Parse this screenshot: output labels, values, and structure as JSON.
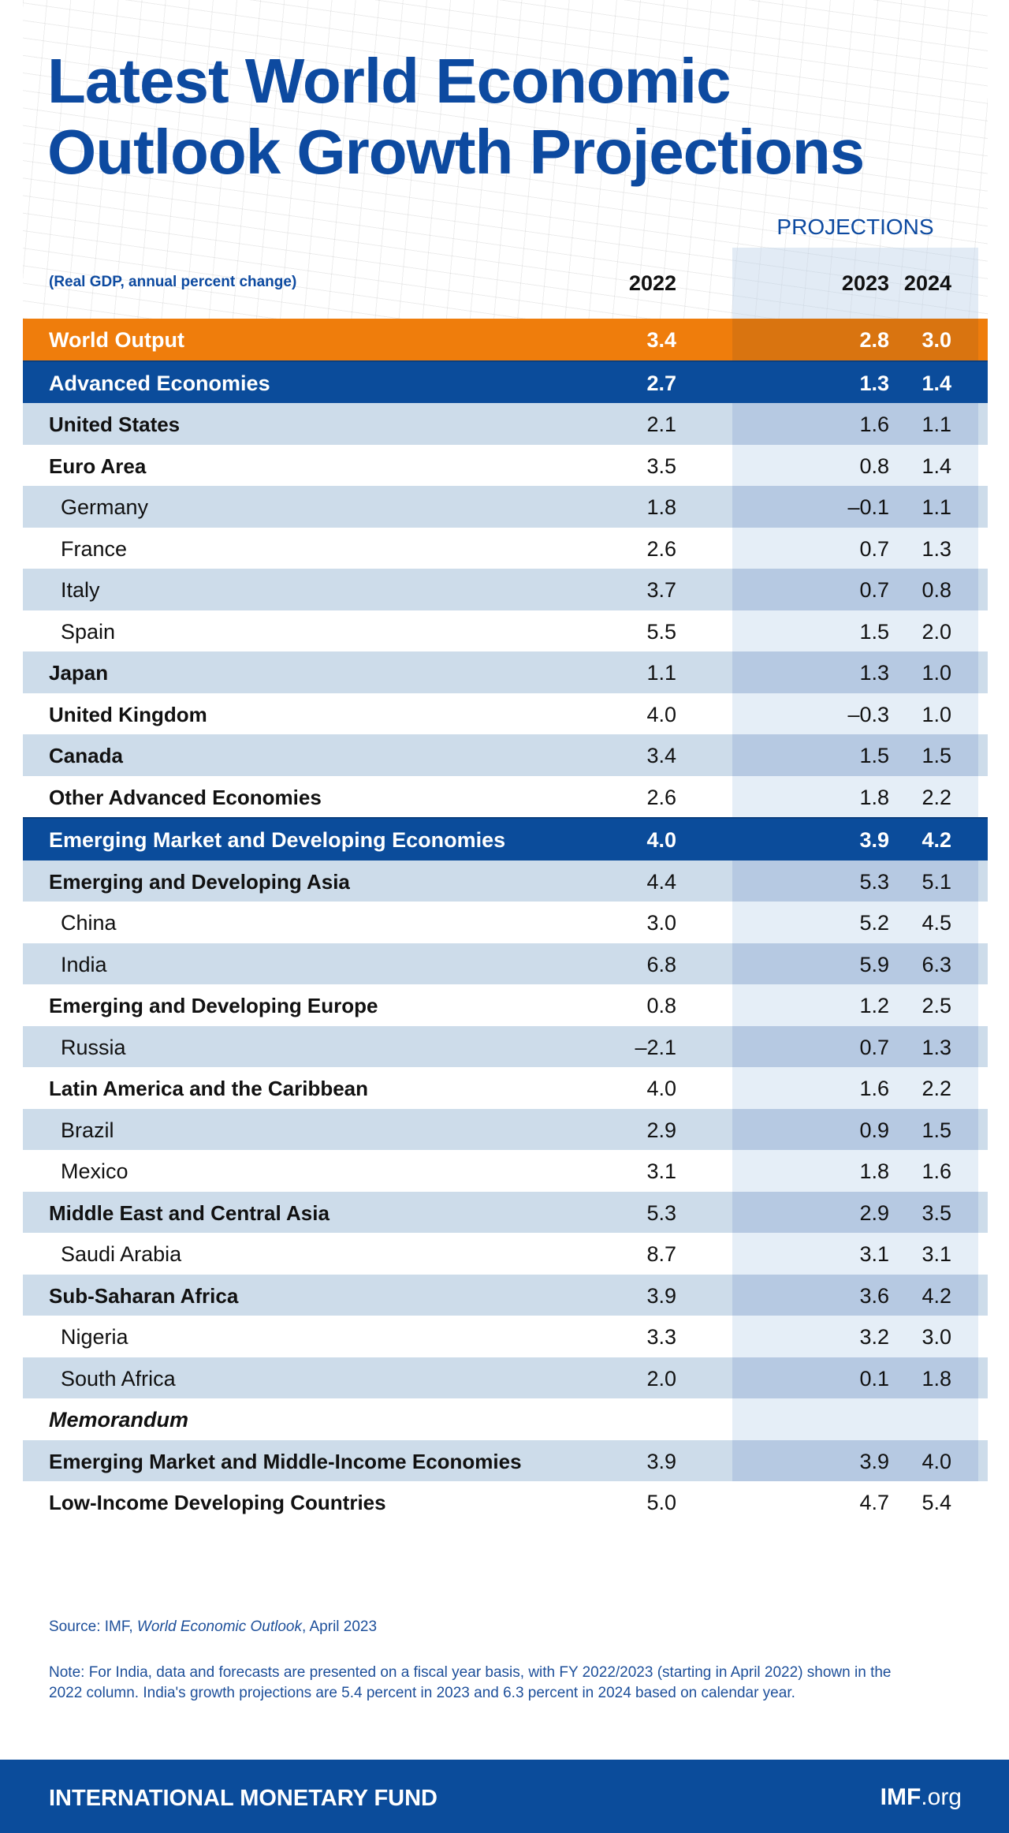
{
  "title_line1": "Latest World Economic",
  "title_line2": "Outlook Growth Projections",
  "projections_label": "PROJECTIONS",
  "subtitle": "(Real GDP, annual percent change)",
  "years": [
    "2022",
    "2023",
    "2024"
  ],
  "rows": [
    {
      "label": "World Output",
      "type": "world",
      "values": [
        "3.4",
        "2.8",
        "3.0"
      ]
    },
    {
      "label": "Advanced Economies",
      "type": "group",
      "values": [
        "2.7",
        "1.3",
        "1.4"
      ]
    },
    {
      "label": "United States",
      "type": "region",
      "values": [
        "2.1",
        "1.6",
        "1.1"
      ]
    },
    {
      "label": "Euro Area",
      "type": "region",
      "values": [
        "3.5",
        "0.8",
        "1.4"
      ]
    },
    {
      "label": "Germany",
      "type": "country",
      "values": [
        "1.8",
        "–0.1",
        "1.1"
      ]
    },
    {
      "label": "France",
      "type": "country",
      "values": [
        "2.6",
        "0.7",
        "1.3"
      ]
    },
    {
      "label": "Italy",
      "type": "country",
      "values": [
        "3.7",
        "0.7",
        "0.8"
      ]
    },
    {
      "label": "Spain",
      "type": "country",
      "values": [
        "5.5",
        "1.5",
        "2.0"
      ]
    },
    {
      "label": "Japan",
      "type": "region",
      "values": [
        "1.1",
        "1.3",
        "1.0"
      ]
    },
    {
      "label": "United Kingdom",
      "type": "region",
      "values": [
        "4.0",
        "–0.3",
        "1.0"
      ]
    },
    {
      "label": "Canada",
      "type": "region",
      "values": [
        "3.4",
        "1.5",
        "1.5"
      ]
    },
    {
      "label": "Other Advanced Economies",
      "type": "region",
      "values": [
        "2.6",
        "1.8",
        "2.2"
      ]
    },
    {
      "label": "Emerging Market and Developing Economies",
      "type": "group",
      "values": [
        "4.0",
        "3.9",
        "4.2"
      ]
    },
    {
      "label": "Emerging and Developing Asia",
      "type": "region",
      "values": [
        "4.4",
        "5.3",
        "5.1"
      ]
    },
    {
      "label": "China",
      "type": "country",
      "values": [
        "3.0",
        "5.2",
        "4.5"
      ]
    },
    {
      "label": "India",
      "type": "country",
      "values": [
        "6.8",
        "5.9",
        "6.3"
      ]
    },
    {
      "label": "Emerging and Developing Europe",
      "type": "region",
      "values": [
        "0.8",
        "1.2",
        "2.5"
      ]
    },
    {
      "label": "Russia",
      "type": "country",
      "values": [
        "–2.1",
        "0.7",
        "1.3"
      ]
    },
    {
      "label": "Latin America and the Caribbean",
      "type": "region",
      "values": [
        "4.0",
        "1.6",
        "2.2"
      ]
    },
    {
      "label": "Brazil",
      "type": "country",
      "values": [
        "2.9",
        "0.9",
        "1.5"
      ]
    },
    {
      "label": "Mexico",
      "type": "country",
      "values": [
        "3.1",
        "1.8",
        "1.6"
      ]
    },
    {
      "label": "Middle East and Central Asia",
      "type": "region",
      "values": [
        "5.3",
        "2.9",
        "3.5"
      ]
    },
    {
      "label": "Saudi Arabia",
      "type": "country",
      "values": [
        "8.7",
        "3.1",
        "3.1"
      ]
    },
    {
      "label": "Sub-Saharan Africa",
      "type": "region",
      "values": [
        "3.9",
        "3.6",
        "4.2"
      ]
    },
    {
      "label": "Nigeria",
      "type": "country",
      "values": [
        "3.3",
        "3.2",
        "3.0"
      ]
    },
    {
      "label": "South Africa",
      "type": "country",
      "values": [
        "2.0",
        "0.1",
        "1.8"
      ]
    },
    {
      "label": "Memorandum",
      "type": "memo",
      "values": [
        "",
        "",
        ""
      ]
    },
    {
      "label": "Emerging Market and Middle-Income Economies",
      "type": "region",
      "values": [
        "3.9",
        "3.9",
        "4.0"
      ]
    },
    {
      "label": "Low-Income Developing Countries",
      "type": "region",
      "values": [
        "5.0",
        "4.7",
        "5.4"
      ]
    }
  ],
  "source": {
    "prefix": "Source: IMF, ",
    "publication": "World Economic Outlook",
    "suffix": ", April 2023"
  },
  "note": "Note: For India, data and forecasts are presented on a fiscal year basis, with FY 2022/2023 (starting in April 2022) shown in the 2022 column. India's growth projections are 5.4 percent in 2023 and 6.3 percent in 2024 based on calendar year.",
  "footer": {
    "org": "INTERNATIONAL MONETARY FUND",
    "site_bold": "IMF",
    "site_rest": ".org"
  },
  "colors": {
    "brand_blue": "#0b4c9b",
    "world_orange": "#ef7d0c",
    "stripe": "#cddcea"
  }
}
